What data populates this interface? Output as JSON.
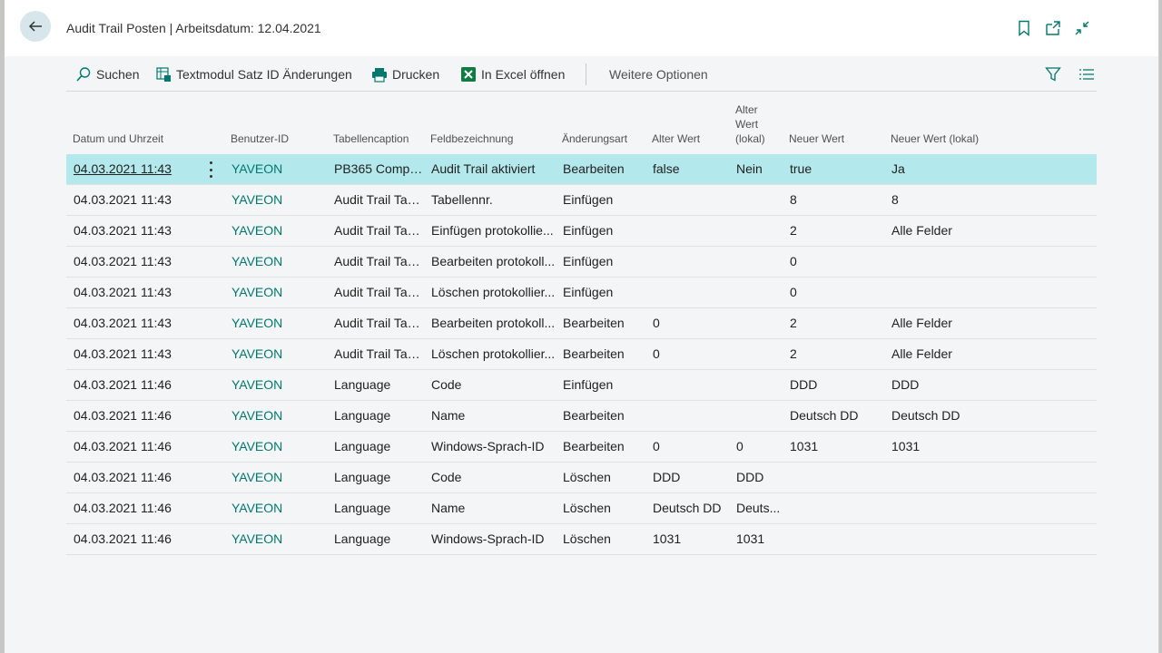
{
  "page": {
    "title": "Audit Trail Posten | Arbeitsdatum: 12.04.2021"
  },
  "toolbar": {
    "search_label": "Suchen",
    "textmodule_label": "Textmodul Satz ID Änderungen",
    "print_label": "Drucken",
    "excel_label": "In Excel öffnen",
    "more_label": "Weitere Optionen"
  },
  "columns": {
    "date": "Datum und Uhrzeit",
    "user": "Benutzer-ID",
    "table": "Tabellencaption",
    "field": "Feldbezeichnung",
    "type": "Änderungsart",
    "old": "Alter Wert",
    "old_local_1": "Alter",
    "old_local_2": "Wert",
    "old_local_3": "(lokal)",
    "new": "Neuer Wert",
    "new_local": "Neuer Wert (lokal)"
  },
  "rows": [
    {
      "date": "04.03.2021 11:43",
      "user": "YAVEON",
      "table": "PB365 Compli...",
      "field": "Audit Trail aktiviert",
      "type": "Bearbeiten",
      "old": "false",
      "old_local": "Nein",
      "new": "true",
      "new_local": "Ja"
    },
    {
      "date": "04.03.2021 11:43",
      "user": "YAVEON",
      "table": "Audit Trail Tab...",
      "field": "Tabellennr.",
      "type": "Einfügen",
      "old": "",
      "old_local": "",
      "new": "8",
      "new_local": "8"
    },
    {
      "date": "04.03.2021 11:43",
      "user": "YAVEON",
      "table": "Audit Trail Tab...",
      "field": "Einfügen protokollie...",
      "type": "Einfügen",
      "old": "",
      "old_local": "",
      "new": "2",
      "new_local": "Alle Felder"
    },
    {
      "date": "04.03.2021 11:43",
      "user": "YAVEON",
      "table": "Audit Trail Tab...",
      "field": "Bearbeiten protokoll...",
      "type": "Einfügen",
      "old": "",
      "old_local": "",
      "new": "0",
      "new_local": ""
    },
    {
      "date": "04.03.2021 11:43",
      "user": "YAVEON",
      "table": "Audit Trail Tab...",
      "field": "Löschen protokollier...",
      "type": "Einfügen",
      "old": "",
      "old_local": "",
      "new": "0",
      "new_local": ""
    },
    {
      "date": "04.03.2021 11:43",
      "user": "YAVEON",
      "table": "Audit Trail Tab...",
      "field": "Bearbeiten protokoll...",
      "type": "Bearbeiten",
      "old": "0",
      "old_local": "",
      "new": "2",
      "new_local": "Alle Felder"
    },
    {
      "date": "04.03.2021 11:43",
      "user": "YAVEON",
      "table": "Audit Trail Tab...",
      "field": "Löschen protokollier...",
      "type": "Bearbeiten",
      "old": "0",
      "old_local": "",
      "new": "2",
      "new_local": "Alle Felder"
    },
    {
      "date": "04.03.2021 11:46",
      "user": "YAVEON",
      "table": "Language",
      "field": "Code",
      "type": "Einfügen",
      "old": "",
      "old_local": "",
      "new": "DDD",
      "new_local": "DDD"
    },
    {
      "date": "04.03.2021 11:46",
      "user": "YAVEON",
      "table": "Language",
      "field": "Name",
      "type": "Bearbeiten",
      "old": "",
      "old_local": "",
      "new": "Deutsch DD",
      "new_local": "Deutsch DD"
    },
    {
      "date": "04.03.2021 11:46",
      "user": "YAVEON",
      "table": "Language",
      "field": "Windows-Sprach-ID",
      "type": "Bearbeiten",
      "old": "0",
      "old_local": "0",
      "new": "1031",
      "new_local": "1031"
    },
    {
      "date": "04.03.2021 11:46",
      "user": "YAVEON",
      "table": "Language",
      "field": "Code",
      "type": "Löschen",
      "old": "DDD",
      "old_local": "DDD",
      "new": "",
      "new_local": ""
    },
    {
      "date": "04.03.2021 11:46",
      "user": "YAVEON",
      "table": "Language",
      "field": "Name",
      "type": "Löschen",
      "old": "Deutsch DD",
      "old_local": "Deuts...",
      "new": "",
      "new_local": ""
    },
    {
      "date": "04.03.2021 11:46",
      "user": "YAVEON",
      "table": "Language",
      "field": "Windows-Sprach-ID",
      "type": "Löschen",
      "old": "1031",
      "old_local": "1031",
      "new": "",
      "new_local": ""
    }
  ],
  "colors": {
    "accent": "#00786e",
    "selected_row": "#b3e8ec",
    "back_button": "#d6e6ea"
  }
}
